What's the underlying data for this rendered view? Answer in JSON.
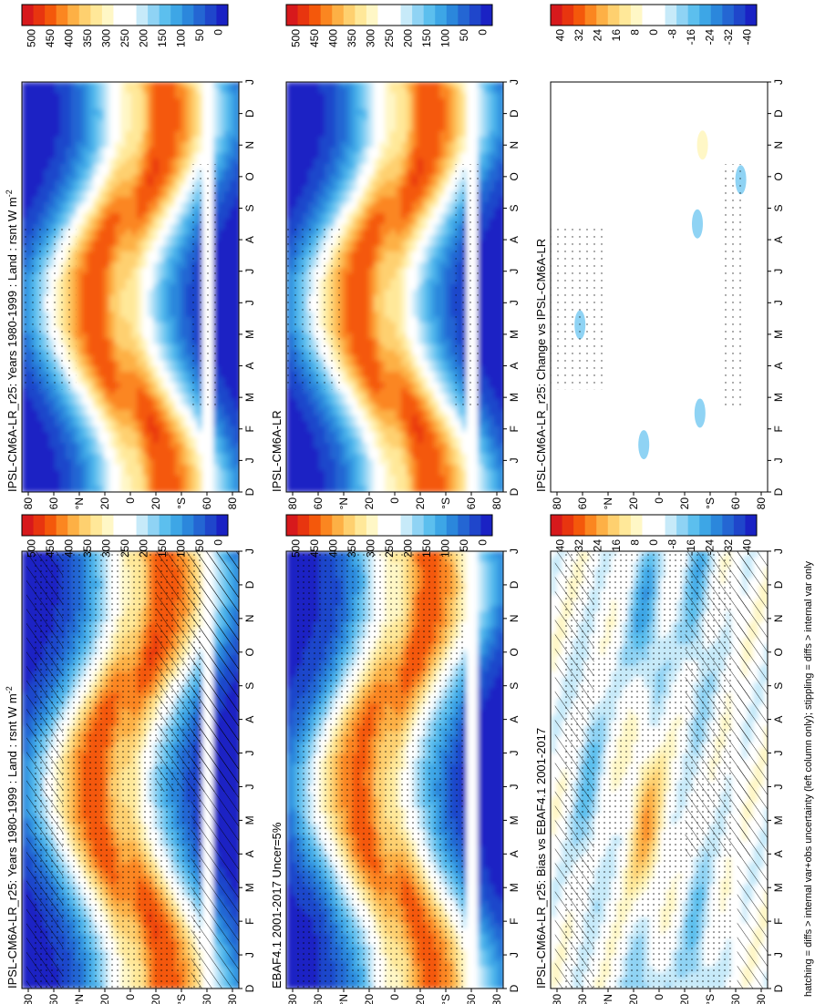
{
  "footer": "hatching = diffs > internal var+obs uncertainty (left column only); stippling = diffs > internal var only",
  "months": [
    "D",
    "J",
    "F",
    "M",
    "A",
    "M",
    "J",
    "J",
    "A",
    "S",
    "O",
    "N",
    "D",
    "J"
  ],
  "lat_ticks": [
    "80",
    "60",
    "°N",
    "20",
    "0",
    "20",
    "°S",
    "60",
    "80"
  ],
  "colorbars": {
    "absolute": {
      "labels": [
        "500",
        "450",
        "400",
        "350",
        "300",
        "250",
        "200",
        "150",
        "100",
        "50",
        "0"
      ],
      "colors": [
        "#d7191c",
        "#e8350f",
        "#f4580b",
        "#fb8620",
        "#fdb045",
        "#fed06f",
        "#ffe899",
        "#fff7c6",
        "#ffffff",
        "#ffffff",
        "#c7eaf9",
        "#8fd3f4",
        "#5cbfee",
        "#3da6e6",
        "#2b87dc",
        "#2466d3",
        "#1f46cb",
        "#1a22c4"
      ]
    },
    "difference": {
      "labels": [
        "40",
        "32",
        "24",
        "16",
        "8",
        "0",
        "-8",
        "-16",
        "-24",
        "-32",
        "-40"
      ],
      "colors": [
        "#d7191c",
        "#e8350f",
        "#f4580b",
        "#fb8620",
        "#fdb045",
        "#fed06f",
        "#ffe899",
        "#fff7c6",
        "#ffffff",
        "#ffffff",
        "#c7eaf9",
        "#8fd3f4",
        "#5cbfee",
        "#3da6e6",
        "#2b87dc",
        "#2466d3",
        "#1f46cb",
        "#1a22c4"
      ]
    }
  },
  "panels": [
    {
      "id": "top-left",
      "title": "IPSL-CM6A-LR_r25: Years 1980-1999 : Land : rsnt W m",
      "title_sup": "-2",
      "kind": "absolute",
      "hatch": true,
      "stipple": true
    },
    {
      "id": "top-right",
      "title": "IPSL-CM6A-LR_r25: Years 1980-1999 : Land : rsnt W m",
      "title_sup": "-2",
      "kind": "absolute",
      "hatch": false,
      "stipple": true
    },
    {
      "id": "middle-left",
      "title": "EBAF4.1 2001-2017 Uncer=5%",
      "title_sup": "",
      "kind": "absolute",
      "hatch": false,
      "stipple": true
    },
    {
      "id": "middle-right",
      "title": "IPSL-CM6A-LR",
      "title_sup": "",
      "kind": "absolute",
      "hatch": false,
      "stipple": true
    },
    {
      "id": "bottom-left",
      "title": "IPSL-CM6A-LR_r25: Bias vs EBAF4.1 2001-2017",
      "title_sup": "",
      "kind": "difference",
      "hatch": true,
      "stipple": true
    },
    {
      "id": "bottom-right",
      "title": "IPSL-CM6A-LR_r25: Change vs IPSL-CM6A-LR",
      "title_sup": "",
      "kind": "difference",
      "hatch": false,
      "stipple": true
    }
  ],
  "chart_data": {
    "type": "heatmap",
    "x": [
      "D",
      "J",
      "F",
      "M",
      "A",
      "M",
      "J",
      "J",
      "A",
      "S",
      "O",
      "N",
      "D",
      "J"
    ],
    "y": [
      80,
      60,
      40,
      20,
      0,
      -20,
      -40,
      -60,
      -80
    ],
    "absolute_range": [
      0,
      500
    ],
    "difference_range": [
      -40,
      40
    ],
    "approx_peak_value": 450,
    "land_gap_latitudes": [
      -60,
      -70
    ]
  }
}
